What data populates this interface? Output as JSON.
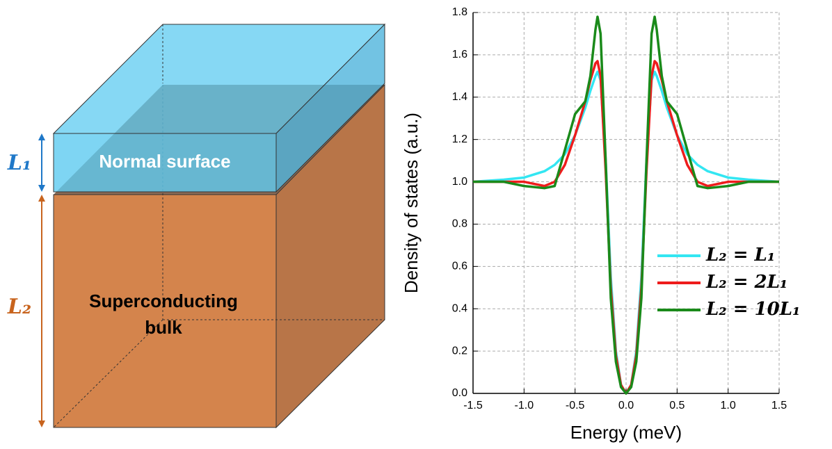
{
  "diagram": {
    "surface_label": "Normal surface",
    "bulk_label_lines": [
      "Superconducting",
      "bulk"
    ],
    "thickness_surface": "L₁",
    "thickness_bulk": "L₂"
  },
  "chart_data": {
    "type": "line",
    "x_label": "Energy (meV)",
    "y_label": "Density of states (a.u.)",
    "x": [
      -1.5,
      -1.2,
      -1.0,
      -0.8,
      -0.7,
      -0.6,
      -0.5,
      -0.4,
      -0.35,
      -0.3,
      -0.28,
      -0.25,
      -0.2,
      -0.15,
      -0.1,
      -0.05,
      0,
      0.05,
      0.1,
      0.15,
      0.2,
      0.25,
      0.28,
      0.3,
      0.35,
      0.4,
      0.5,
      0.6,
      0.7,
      0.8,
      1.0,
      1.2,
      1.5
    ],
    "series": [
      {
        "name": "L₂ = L₁",
        "color": "#33e6f2",
        "values": [
          1.0,
          1.01,
          1.02,
          1.05,
          1.08,
          1.13,
          1.22,
          1.35,
          1.43,
          1.5,
          1.52,
          1.48,
          1.1,
          0.55,
          0.2,
          0.04,
          0,
          0.04,
          0.2,
          0.55,
          1.1,
          1.48,
          1.52,
          1.5,
          1.43,
          1.35,
          1.22,
          1.13,
          1.08,
          1.05,
          1.02,
          1.01,
          1.0
        ]
      },
      {
        "name": "L₂ = 2L₁",
        "color": "#ee1c1c",
        "values": [
          1.0,
          1.0,
          1.0,
          0.98,
          1.0,
          1.08,
          1.22,
          1.38,
          1.48,
          1.56,
          1.57,
          1.5,
          1.05,
          0.5,
          0.18,
          0.04,
          0,
          0.04,
          0.18,
          0.5,
          1.05,
          1.5,
          1.57,
          1.56,
          1.48,
          1.38,
          1.22,
          1.08,
          1.0,
          0.98,
          1.0,
          1.0,
          1.0
        ]
      },
      {
        "name": "L₂ = 10L₁",
        "color": "#1a8a1a",
        "values": [
          1.0,
          1.0,
          0.98,
          0.97,
          0.98,
          1.15,
          1.32,
          1.38,
          1.5,
          1.72,
          1.78,
          1.7,
          1.1,
          0.45,
          0.15,
          0.03,
          0,
          0.03,
          0.15,
          0.45,
          1.1,
          1.7,
          1.78,
          1.72,
          1.5,
          1.38,
          1.32,
          1.15,
          0.98,
          0.97,
          0.98,
          1.0,
          1.0
        ]
      }
    ],
    "xlim": [
      -1.5,
      1.5
    ],
    "xticks": [
      -1.5,
      {
        "value": -1.0,
        "label": "-1.0"
      },
      -0.5,
      {
        "value": 0,
        "label": "0.0"
      },
      0.5,
      {
        "value": 1.0,
        "label": "1.0"
      },
      1.5
    ],
    "ylim": [
      0,
      1.8
    ],
    "yticks": [
      {
        "value": 0,
        "label": "0.0"
      },
      0.2,
      0.4,
      0.6,
      0.8,
      {
        "value": 1.0,
        "label": "1.0"
      },
      1.2,
      1.4,
      1.6,
      1.8
    ],
    "grid": true,
    "legend": "right"
  }
}
